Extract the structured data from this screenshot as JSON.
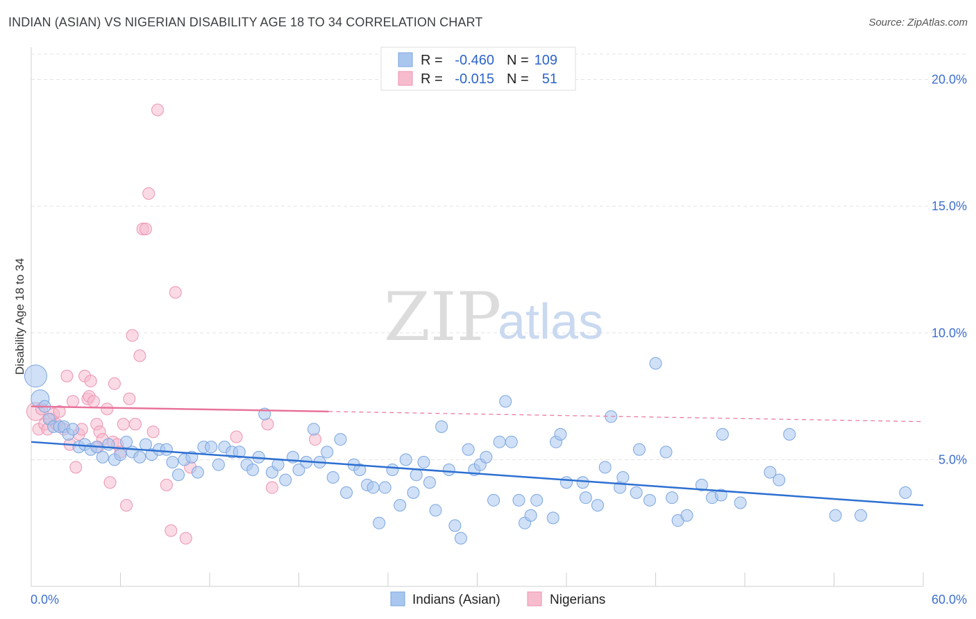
{
  "header": {
    "title": "INDIAN (ASIAN) VS NIGERIAN DISABILITY AGE 18 TO 34 CORRELATION CHART",
    "source": "Source: ZipAtlas.com"
  },
  "watermark": {
    "zip": "ZIP",
    "atlas": "atlas"
  },
  "legend_top": {
    "r_label": "R =",
    "n_label": "N =",
    "rows": [
      {
        "r": "-0.460",
        "n": "109"
      },
      {
        "r": "-0.015",
        "n": "51"
      }
    ]
  },
  "legend_bottom": {
    "series1": "Indians (Asian)",
    "series2": "Nigerians"
  },
  "chart_data": {
    "type": "scatter",
    "title": "INDIAN (ASIAN) VS NIGERIAN DISABILITY AGE 18 TO 34 CORRELATION CHART",
    "ylabel": "Disability Age 18 to 34",
    "xlabel": "",
    "xlim": [
      0,
      60
    ],
    "ylim": [
      0,
      21
    ],
    "x_tick_labels": [
      "0.0%",
      "60.0%"
    ],
    "y_ticks": [
      5,
      10,
      15,
      20
    ],
    "y_tick_labels": [
      "5.0%",
      "10.0%",
      "15.0%",
      "20.0%"
    ],
    "grid": true,
    "legend_position": "top-center",
    "colors": {
      "series1_fill": "#a9c6ef",
      "series1_stroke": "#7aa5e0",
      "series1_line": "#2c6fd1",
      "series2_fill": "#f6bccd",
      "series2_stroke": "#ec93b0",
      "series2_line": "#e8739a",
      "tick_text": "#3d6fce"
    },
    "series": [
      {
        "name": "Indians (Asian)",
        "r": -0.46,
        "n": 109,
        "trend": {
          "x": [
            0,
            60
          ],
          "y": [
            5.7,
            3.2
          ],
          "dashed_from": null
        },
        "points": [
          [
            0.3,
            8.3
          ],
          [
            0.6,
            7.4
          ],
          [
            0.9,
            7.1
          ],
          [
            1.2,
            6.6
          ],
          [
            1.5,
            6.3
          ],
          [
            1.9,
            6.3
          ],
          [
            2.2,
            6.3
          ],
          [
            2.5,
            6.0
          ],
          [
            2.8,
            6.2
          ],
          [
            3.2,
            5.5
          ],
          [
            3.6,
            5.6
          ],
          [
            4.0,
            5.4
          ],
          [
            4.4,
            5.5
          ],
          [
            4.8,
            5.1
          ],
          [
            5.2,
            5.6
          ],
          [
            5.6,
            5.0
          ],
          [
            6.0,
            5.2
          ],
          [
            6.4,
            5.7
          ],
          [
            6.8,
            5.3
          ],
          [
            7.3,
            5.1
          ],
          [
            7.7,
            5.6
          ],
          [
            8.1,
            5.2
          ],
          [
            8.6,
            5.4
          ],
          [
            9.1,
            5.4
          ],
          [
            9.5,
            4.9
          ],
          [
            9.9,
            4.4
          ],
          [
            10.3,
            5.0
          ],
          [
            10.8,
            5.1
          ],
          [
            11.2,
            4.5
          ],
          [
            11.6,
            5.5
          ],
          [
            12.1,
            5.5
          ],
          [
            12.6,
            4.8
          ],
          [
            13.0,
            5.5
          ],
          [
            13.5,
            5.3
          ],
          [
            14.0,
            5.3
          ],
          [
            14.5,
            4.8
          ],
          [
            14.9,
            4.6
          ],
          [
            15.3,
            5.1
          ],
          [
            15.7,
            6.8
          ],
          [
            16.2,
            4.5
          ],
          [
            16.6,
            4.8
          ],
          [
            17.1,
            4.2
          ],
          [
            17.6,
            5.1
          ],
          [
            18.0,
            4.6
          ],
          [
            18.5,
            4.9
          ],
          [
            19.0,
            6.2
          ],
          [
            19.4,
            4.9
          ],
          [
            19.9,
            5.3
          ],
          [
            20.3,
            4.3
          ],
          [
            20.8,
            5.8
          ],
          [
            21.2,
            3.7
          ],
          [
            21.7,
            4.8
          ],
          [
            22.1,
            4.6
          ],
          [
            22.6,
            4.0
          ],
          [
            23.0,
            3.9
          ],
          [
            23.4,
            2.5
          ],
          [
            23.8,
            3.9
          ],
          [
            24.3,
            4.6
          ],
          [
            24.8,
            3.2
          ],
          [
            25.2,
            5.0
          ],
          [
            25.7,
            3.7
          ],
          [
            25.9,
            4.4
          ],
          [
            26.4,
            4.9
          ],
          [
            26.8,
            4.1
          ],
          [
            27.2,
            3.0
          ],
          [
            27.6,
            6.3
          ],
          [
            28.1,
            4.6
          ],
          [
            28.5,
            2.4
          ],
          [
            28.9,
            1.9
          ],
          [
            29.4,
            5.4
          ],
          [
            29.8,
            4.6
          ],
          [
            30.2,
            4.8
          ],
          [
            30.6,
            5.1
          ],
          [
            31.1,
            3.4
          ],
          [
            31.5,
            5.7
          ],
          [
            31.9,
            7.3
          ],
          [
            32.3,
            5.7
          ],
          [
            32.8,
            3.4
          ],
          [
            33.2,
            2.5
          ],
          [
            33.6,
            2.8
          ],
          [
            34.0,
            3.4
          ],
          [
            35.1,
            2.7
          ],
          [
            35.3,
            5.7
          ],
          [
            35.6,
            6.0
          ],
          [
            36.0,
            4.1
          ],
          [
            37.1,
            4.1
          ],
          [
            37.3,
            3.5
          ],
          [
            38.1,
            3.2
          ],
          [
            38.6,
            4.7
          ],
          [
            39.0,
            6.7
          ],
          [
            39.6,
            3.9
          ],
          [
            39.8,
            4.3
          ],
          [
            40.7,
            3.7
          ],
          [
            40.9,
            5.4
          ],
          [
            41.6,
            3.4
          ],
          [
            42.0,
            8.8
          ],
          [
            42.7,
            5.3
          ],
          [
            43.1,
            3.5
          ],
          [
            43.5,
            2.6
          ],
          [
            44.1,
            2.8
          ],
          [
            45.1,
            4.0
          ],
          [
            45.8,
            3.5
          ],
          [
            46.4,
            3.6
          ],
          [
            46.5,
            6.0
          ],
          [
            47.7,
            3.3
          ],
          [
            49.7,
            4.5
          ],
          [
            50.3,
            4.2
          ],
          [
            51.0,
            6.0
          ],
          [
            54.1,
            2.8
          ],
          [
            55.8,
            2.8
          ],
          [
            58.8,
            3.7
          ]
        ]
      },
      {
        "name": "Nigerians",
        "r": -0.015,
        "n": 51,
        "trend": {
          "x": [
            0,
            60
          ],
          "y": [
            7.1,
            6.5
          ],
          "dashed_from": 20
        },
        "points": [
          [
            0.3,
            6.9
          ],
          [
            0.5,
            6.2
          ],
          [
            0.7,
            7.0
          ],
          [
            0.9,
            6.4
          ],
          [
            1.1,
            6.2
          ],
          [
            1.3,
            6.6
          ],
          [
            1.5,
            6.8
          ],
          [
            1.7,
            6.4
          ],
          [
            1.9,
            6.9
          ],
          [
            2.2,
            6.2
          ],
          [
            2.4,
            8.3
          ],
          [
            2.6,
            5.6
          ],
          [
            2.8,
            7.3
          ],
          [
            3.0,
            4.7
          ],
          [
            3.2,
            6.0
          ],
          [
            3.4,
            6.2
          ],
          [
            3.6,
            8.3
          ],
          [
            3.8,
            7.4
          ],
          [
            3.9,
            7.5
          ],
          [
            4.0,
            8.1
          ],
          [
            4.2,
            7.3
          ],
          [
            4.4,
            6.4
          ],
          [
            4.5,
            5.5
          ],
          [
            4.6,
            6.1
          ],
          [
            4.8,
            5.8
          ],
          [
            5.1,
            7.0
          ],
          [
            5.3,
            4.1
          ],
          [
            5.5,
            5.7
          ],
          [
            5.6,
            8.0
          ],
          [
            5.8,
            5.6
          ],
          [
            6.0,
            5.3
          ],
          [
            6.2,
            6.4
          ],
          [
            6.4,
            3.2
          ],
          [
            6.6,
            7.4
          ],
          [
            6.8,
            9.9
          ],
          [
            7.0,
            6.4
          ],
          [
            7.3,
            9.1
          ],
          [
            7.5,
            14.1
          ],
          [
            7.7,
            14.1
          ],
          [
            7.9,
            15.5
          ],
          [
            8.2,
            6.1
          ],
          [
            8.5,
            18.8
          ],
          [
            9.1,
            4.0
          ],
          [
            9.4,
            2.2
          ],
          [
            9.7,
            11.6
          ],
          [
            10.4,
            1.9
          ],
          [
            10.7,
            4.7
          ],
          [
            13.8,
            5.9
          ],
          [
            15.9,
            6.4
          ],
          [
            16.2,
            3.9
          ],
          [
            19.1,
            5.8
          ]
        ]
      }
    ]
  }
}
